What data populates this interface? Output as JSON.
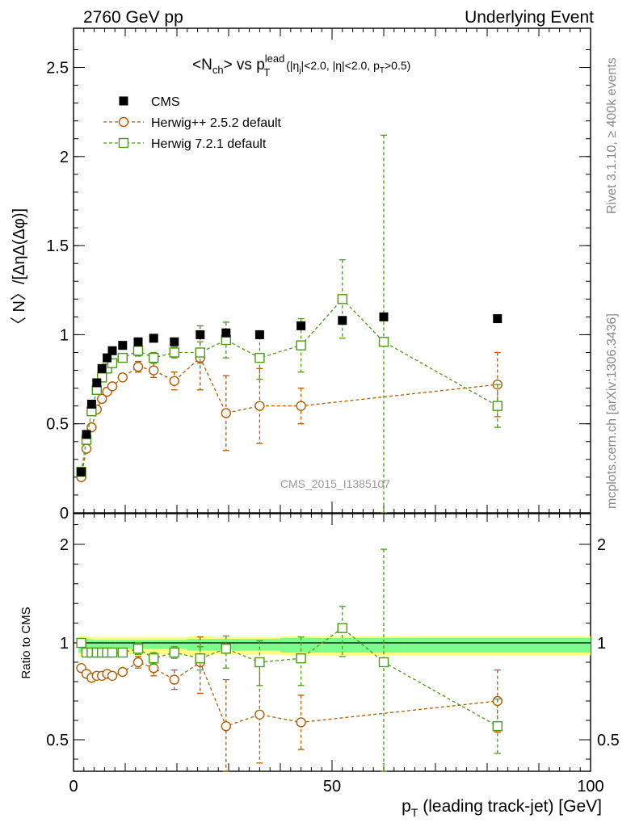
{
  "header": {
    "left": "2760 GeV pp",
    "right": "Underlying Event"
  },
  "side_labels": {
    "rivet": "Rivet 3.1.10, ≥ 400k events",
    "mcplots": "mcplots.cern.ch [arXiv:1306.3436]"
  },
  "watermark": "CMS_2015_I1385107",
  "chart_data": [
    {
      "type": "scatter",
      "panel": "main",
      "title_parts": {
        "pre": "<N",
        "sub1": "ch",
        "mid": "> vs p",
        "sup": "lead",
        "sub2": "T",
        "post": " (|η",
        "sub3": "j",
        "post2": "|<2.0, |η|<2.0, p",
        "sub4": "T",
        "post3": ">0.5)"
      },
      "ylabel": "〈 N〉/[ΔηΔ(Δφ)]",
      "xlim": [
        0,
        100
      ],
      "ylim": [
        0,
        2.72
      ],
      "yticks": [
        0,
        0.5,
        1,
        1.5,
        2,
        2.5
      ],
      "ytick_labels": [
        "0",
        "0.5",
        "1",
        "1.5",
        "2",
        "2.5"
      ],
      "legend_placement": "top-left",
      "series": [
        {
          "name": "CMS",
          "color": "#000000",
          "marker": "filled-square",
          "x": [
            1.5,
            2.5,
            3.5,
            4.5,
            5.5,
            6.5,
            7.5,
            9.5,
            12.5,
            15.5,
            19.5,
            24.5,
            29.5,
            36.0,
            44.0,
            52.0,
            60.0,
            82.0
          ],
          "y": [
            0.23,
            0.44,
            0.61,
            0.73,
            0.81,
            0.87,
            0.91,
            0.94,
            0.96,
            0.98,
            0.96,
            1.0,
            1.01,
            1.0,
            1.05,
            1.08,
            1.1,
            1.09
          ],
          "err": [
            0.01,
            0.01,
            0.01,
            0.01,
            0.01,
            0.01,
            0.01,
            0.01,
            0.01,
            0.01,
            0.01,
            0.01,
            0.01,
            0.01,
            0.01,
            0.01,
            0.01,
            0.01
          ]
        },
        {
          "name": "Herwig++ 2.5.2 default",
          "color": "#b25b00",
          "marker": "open-circle",
          "x": [
            1.5,
            2.5,
            3.5,
            4.5,
            5.5,
            6.5,
            7.5,
            9.5,
            12.5,
            15.5,
            19.5,
            24.5,
            29.5,
            36.0,
            44.0,
            82.0
          ],
          "y": [
            0.2,
            0.36,
            0.48,
            0.58,
            0.64,
            0.68,
            0.71,
            0.76,
            0.82,
            0.8,
            0.74,
            0.87,
            0.56,
            0.6,
            0.6,
            0.72
          ],
          "err": [
            0.01,
            0.01,
            0.01,
            0.02,
            0.02,
            0.02,
            0.02,
            0.02,
            0.03,
            0.04,
            0.05,
            0.18,
            0.21,
            0.21,
            0.1,
            0.18
          ]
        },
        {
          "name": "Herwig 7.2.1 default",
          "color": "#4d9a15",
          "marker": "open-square",
          "x": [
            1.5,
            2.5,
            3.5,
            4.5,
            5.5,
            6.5,
            7.5,
            9.5,
            12.5,
            15.5,
            19.5,
            24.5,
            29.5,
            36.0,
            44.0,
            52.0,
            60.0,
            82.0
          ],
          "y": [
            0.23,
            0.41,
            0.57,
            0.69,
            0.76,
            0.81,
            0.84,
            0.87,
            0.91,
            0.87,
            0.9,
            0.9,
            0.97,
            0.87,
            0.94,
            1.2,
            0.96,
            0.6
          ],
          "err": [
            0.01,
            0.01,
            0.01,
            0.01,
            0.01,
            0.02,
            0.02,
            0.02,
            0.03,
            0.03,
            0.03,
            0.06,
            0.1,
            0.12,
            0.15,
            0.22,
            1.16,
            0.12
          ]
        }
      ]
    },
    {
      "type": "scatter",
      "panel": "ratio",
      "ylabel": "Ratio to CMS",
      "xlabel_parts": {
        "pre": "p",
        "sub": "T",
        "post": " (leading track-jet) [GeV]"
      },
      "xlim": [
        0,
        100
      ],
      "ylim": [
        0.35,
        2.3
      ],
      "yticks": [
        0.5,
        1,
        2
      ],
      "ytick_labels": [
        "0.5",
        "1",
        "2"
      ],
      "xticks": [
        0,
        50,
        100
      ],
      "xtick_labels": [
        "0",
        "50",
        "100"
      ],
      "band": {
        "x_edges": [
          1,
          2,
          3,
          4,
          5,
          6,
          7,
          8,
          11,
          14,
          17,
          22,
          27,
          32,
          40,
          48,
          56,
          64,
          100
        ],
        "inner_half": [
          0.05,
          0.04,
          0.035,
          0.03,
          0.03,
          0.03,
          0.03,
          0.03,
          0.03,
          0.03,
          0.03,
          0.04,
          0.04,
          0.04,
          0.05,
          0.05,
          0.05,
          0.05
        ],
        "outer_half": [
          0.07,
          0.065,
          0.06,
          0.06,
          0.06,
          0.06,
          0.06,
          0.06,
          0.06,
          0.06,
          0.06,
          0.065,
          0.06,
          0.06,
          0.065,
          0.065,
          0.065,
          0.065
        ],
        "inner_color": "#7cfc8c",
        "outer_color": "#ffff80"
      },
      "series": [
        {
          "name": "Herwig++ 2.5.2 default",
          "color": "#b25b00",
          "marker": "open-circle",
          "x": [
            1.5,
            2.5,
            3.5,
            4.5,
            5.5,
            6.5,
            7.5,
            9.5,
            12.5,
            15.5,
            19.5,
            24.5,
            29.5,
            36.0,
            44.0,
            82.0
          ],
          "y": [
            0.87,
            0.84,
            0.82,
            0.83,
            0.83,
            0.84,
            0.83,
            0.85,
            0.9,
            0.87,
            0.81,
            0.9,
            0.57,
            0.63,
            0.59,
            0.7
          ],
          "err": [
            0.01,
            0.01,
            0.01,
            0.01,
            0.01,
            0.01,
            0.01,
            0.02,
            0.03,
            0.04,
            0.05,
            0.16,
            0.24,
            0.25,
            0.14,
            0.16
          ]
        },
        {
          "name": "Herwig 7.2.1 default",
          "color": "#4d9a15",
          "marker": "open-square",
          "x": [
            1.5,
            2.5,
            3.5,
            4.5,
            5.5,
            6.5,
            7.5,
            9.5,
            12.5,
            15.5,
            19.5,
            24.5,
            29.5,
            36.0,
            44.0,
            52.0,
            60.0,
            82.0
          ],
          "y": [
            1.0,
            0.95,
            0.95,
            0.95,
            0.95,
            0.95,
            0.95,
            0.95,
            0.97,
            0.92,
            0.95,
            0.92,
            0.97,
            0.9,
            0.92,
            1.15,
            0.9,
            0.57
          ],
          "err": [
            0.01,
            0.01,
            0.01,
            0.01,
            0.01,
            0.01,
            0.01,
            0.02,
            0.03,
            0.03,
            0.03,
            0.06,
            0.1,
            0.12,
            0.14,
            0.22,
            1.05,
            0.14
          ]
        }
      ]
    }
  ]
}
